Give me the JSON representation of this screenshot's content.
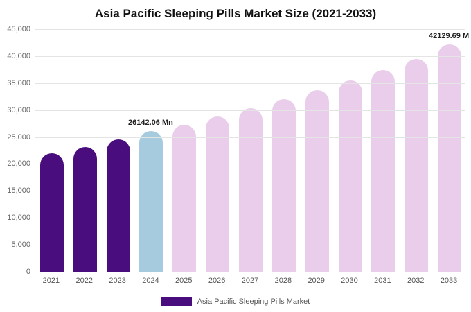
{
  "legend": {
    "label": "Asia Pacific Sleeping Pills Market",
    "swatch_color": "#4a0d7e"
  },
  "chart_data": {
    "type": "bar",
    "title": "Asia Pacific Sleeping Pills Market Size (2021-2033)",
    "xlabel": "",
    "ylabel": "",
    "categories": [
      "2021",
      "2022",
      "2023",
      "2024",
      "2025",
      "2026",
      "2027",
      "2028",
      "2029",
      "2030",
      "2031",
      "2032",
      "2033"
    ],
    "values": [
      22000,
      23100,
      24600,
      26142.06,
      27300,
      28800,
      30400,
      32000,
      33700,
      35500,
      37400,
      39500,
      42129.69
    ],
    "ylim": [
      0,
      45000
    ],
    "ytick_step": 5000,
    "grid": true,
    "legend_position": "bottom",
    "bar_colors": {
      "historical": "#4a0d7e",
      "highlight": "#a6cbdf",
      "forecast": "#e9cdea"
    },
    "bar_roles": [
      "historical",
      "historical",
      "historical",
      "highlight",
      "forecast",
      "forecast",
      "forecast",
      "forecast",
      "forecast",
      "forecast",
      "forecast",
      "forecast",
      "forecast"
    ],
    "annotations": [
      {
        "index": 3,
        "text": "26142.06 Mn"
      },
      {
        "index": 12,
        "text": "42129.69 M"
      }
    ]
  }
}
